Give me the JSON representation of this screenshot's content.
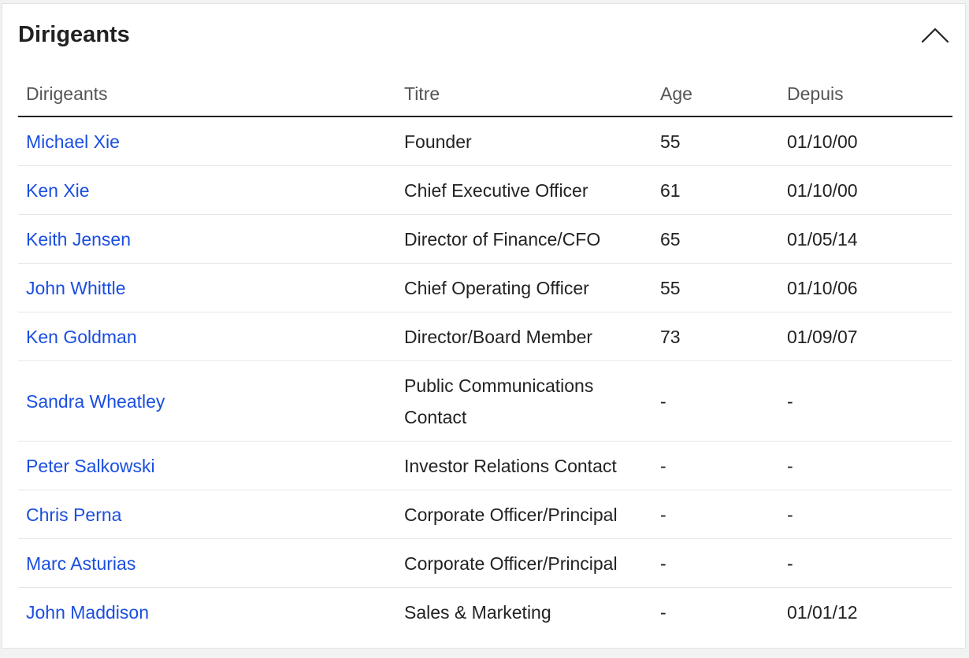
{
  "section": {
    "title": "Dirigeants"
  },
  "table": {
    "headers": [
      "Dirigeants",
      "Titre",
      "Age",
      "Depuis"
    ],
    "rows": [
      {
        "name": "Michael Xie",
        "title": "Founder",
        "age": "55",
        "since": "01/10/00"
      },
      {
        "name": "Ken Xie",
        "title": "Chief Executive Officer",
        "age": "61",
        "since": "01/10/00"
      },
      {
        "name": "Keith Jensen",
        "title": "Director of Finance/CFO",
        "age": "65",
        "since": "01/05/14"
      },
      {
        "name": "John Whittle",
        "title": "Chief Operating Officer",
        "age": "55",
        "since": "01/10/06"
      },
      {
        "name": "Ken Goldman",
        "title": "Director/Board Member",
        "age": "73",
        "since": "01/09/07"
      },
      {
        "name": "Sandra Wheatley",
        "title": "Public Communications Contact",
        "age": "-",
        "since": "-"
      },
      {
        "name": "Peter Salkowski",
        "title": "Investor Relations Contact",
        "age": "-",
        "since": "-"
      },
      {
        "name": "Chris Perna",
        "title": "Corporate Officer/Principal",
        "age": "-",
        "since": "-"
      },
      {
        "name": "Marc Asturias",
        "title": "Corporate Officer/Principal",
        "age": "-",
        "since": "-"
      },
      {
        "name": "John Maddison",
        "title": "Sales & Marketing",
        "age": "-",
        "since": "01/01/12"
      }
    ]
  },
  "icons": {
    "collapse": "chevron-up-icon"
  },
  "colors": {
    "link": "#1a4ee0",
    "text": "#222222",
    "header_text": "#555555"
  }
}
